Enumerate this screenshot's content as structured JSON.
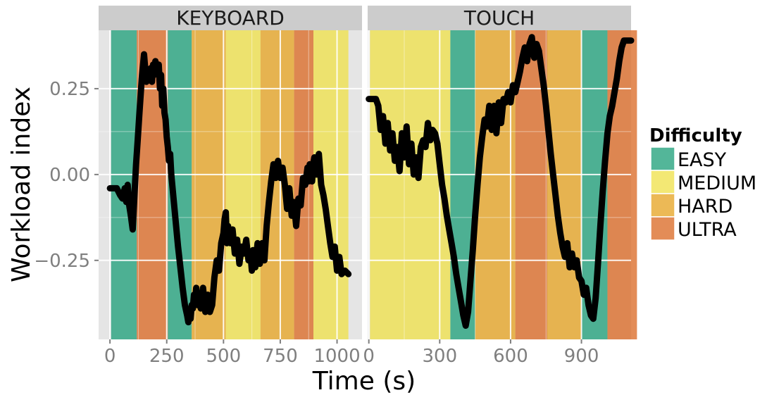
{
  "chart_data": {
    "type": "line",
    "xlabel": "Time (s)",
    "ylabel": "Workload index",
    "ylim": [
      -0.48,
      0.42
    ],
    "yticks": [
      -0.25,
      0.0,
      0.25
    ],
    "ytick_labels": [
      "−0.25",
      "0.00",
      "0.25"
    ],
    "grid": true,
    "legend": {
      "title": "Difficulty",
      "placement": "right",
      "entries": [
        {
          "label": "EASY",
          "color": "#1a9e77"
        },
        {
          "label": "MEDIUM",
          "color": "#efe045"
        },
        {
          "label": "HARD",
          "color": "#e6a21e"
        },
        {
          "label": "ULTRA",
          "color": "#d9661f"
        }
      ]
    },
    "line_color": "#000000",
    "panels": [
      {
        "title": "KEYBOARD",
        "xlim": [
          -50,
          1110
        ],
        "xticks": [
          0,
          250,
          500,
          750,
          1000
        ],
        "xtick_labels": [
          "0",
          "250",
          "500",
          "750",
          "1000"
        ],
        "bands": [
          {
            "start": 5,
            "end": 118,
            "level": "EASY"
          },
          {
            "start": 118,
            "end": 255,
            "level": "ULTRA"
          },
          {
            "start": 255,
            "end": 360,
            "level": "EASY"
          },
          {
            "start": 360,
            "end": 510,
            "level": "HARD"
          },
          {
            "start": 510,
            "end": 663,
            "level": "MEDIUM"
          },
          {
            "start": 663,
            "end": 811,
            "level": "HARD"
          },
          {
            "start": 811,
            "end": 896,
            "level": "ULTRA"
          },
          {
            "start": 896,
            "end": 1050,
            "level": "MEDIUM"
          }
        ],
        "series": [
          {
            "x": [
              0,
              30,
              45,
              55,
              65,
              72,
              78,
              85,
              92,
              100,
              108,
              115,
              122,
              130,
              140,
              150,
              160,
              168,
              175,
              180,
              185,
              190,
              195,
              200,
              210,
              215,
              220,
              225,
              230,
              235,
              240,
              245,
              250,
              255,
              260,
              265,
              270,
              280,
              290,
              300,
              310,
              320,
              330,
              340,
              345,
              350,
              355,
              360,
              365,
              370,
              375,
              380,
              385,
              390,
              400,
              410,
              420,
              430,
              440,
              450,
              460,
              470,
              480,
              490,
              500,
              505,
              510,
              515,
              520,
              525,
              530,
              540,
              550,
              560,
              570,
              580,
              590,
              600,
              610,
              620,
              625,
              630,
              640,
              650,
              660,
              670,
              680,
              690,
              700,
              710,
              720,
              730,
              740,
              750,
              760,
              770,
              780,
              790,
              800,
              810,
              820,
              830,
              840,
              850,
              860,
              870,
              875,
              880,
              885,
              890,
              895,
              900,
              910,
              920,
              930,
              940,
              950,
              960,
              970,
              980,
              990,
              1000,
              1010,
              1020,
              1035,
              1050
            ],
            "y": [
              -0.04,
              -0.04,
              -0.06,
              -0.07,
              -0.04,
              -0.08,
              -0.03,
              -0.09,
              -0.12,
              -0.16,
              -0.06,
              0.03,
              0.1,
              0.18,
              0.28,
              0.35,
              0.27,
              0.3,
              0.28,
              0.31,
              0.27,
              0.32,
              0.29,
              0.33,
              0.3,
              0.32,
              0.25,
              0.29,
              0.2,
              0.25,
              0.18,
              0.16,
              0.11,
              0.08,
              0.04,
              0.06,
              0.0,
              -0.07,
              -0.14,
              -0.21,
              -0.27,
              -0.33,
              -0.38,
              -0.41,
              -0.43,
              -0.4,
              -0.42,
              -0.38,
              -0.39,
              -0.35,
              -0.37,
              -0.33,
              -0.38,
              -0.35,
              -0.39,
              -0.33,
              -0.4,
              -0.35,
              -0.4,
              -0.38,
              -0.3,
              -0.25,
              -0.28,
              -0.2,
              -0.17,
              -0.13,
              -0.11,
              -0.2,
              -0.15,
              -0.18,
              -0.2,
              -0.16,
              -0.23,
              -0.19,
              -0.26,
              -0.21,
              -0.23,
              -0.19,
              -0.25,
              -0.24,
              -0.28,
              -0.22,
              -0.27,
              -0.2,
              -0.26,
              -0.2,
              -0.25,
              -0.15,
              -0.08,
              -0.02,
              0.03,
              -0.01,
              0.04,
              -0.01,
              0.02,
              -0.03,
              -0.1,
              -0.04,
              -0.12,
              -0.08,
              -0.15,
              -0.07,
              -0.09,
              -0.01,
              -0.03,
              0.02,
              -0.02,
              0.03,
              0.01,
              -0.02,
              0.03,
              0.05,
              0.0,
              0.06,
              -0.03,
              -0.06,
              -0.1,
              -0.15,
              -0.2,
              -0.24,
              -0.21,
              -0.28,
              -0.24,
              -0.29,
              -0.28,
              -0.29
            ]
          }
        ]
      },
      {
        "title": "TOUCH",
        "xlim": [
          -5,
          1110
        ],
        "xticks": [
          0,
          300,
          600,
          900
        ],
        "xtick_labels": [
          "0",
          "300",
          "600",
          "900"
        ],
        "bands": [
          {
            "start": 5,
            "end": 345,
            "level": "MEDIUM"
          },
          {
            "start": 345,
            "end": 450,
            "level": "EASY"
          },
          {
            "start": 450,
            "end": 620,
            "level": "HARD"
          },
          {
            "start": 620,
            "end": 755,
            "level": "ULTRA"
          },
          {
            "start": 755,
            "end": 900,
            "level": "HARD"
          },
          {
            "start": 900,
            "end": 1010,
            "level": "EASY"
          },
          {
            "start": 1010,
            "end": 1135,
            "level": "ULTRA"
          }
        ],
        "series": [
          {
            "x": [
              0,
              30,
              40,
              50,
              60,
              70,
              80,
              90,
              100,
              110,
              120,
              130,
              140,
              150,
              160,
              170,
              180,
              190,
              200,
              210,
              220,
              230,
              240,
              250,
              260,
              270,
              280,
              290,
              300,
              310,
              320,
              330,
              340,
              350,
              360,
              370,
              380,
              390,
              400,
              410,
              420,
              430,
              440,
              450,
              460,
              470,
              480,
              490,
              500,
              510,
              520,
              530,
              540,
              550,
              560,
              570,
              580,
              590,
              600,
              610,
              620,
              630,
              640,
              650,
              660,
              670,
              680,
              690,
              700,
              710,
              720,
              730,
              740,
              750,
              760,
              770,
              780,
              790,
              800,
              810,
              820,
              830,
              840,
              850,
              860,
              870,
              880,
              890,
              900,
              910,
              920,
              930,
              940,
              950,
              960,
              970,
              980,
              990,
              1000,
              1010,
              1020,
              1030,
              1040,
              1050,
              1060,
              1070,
              1080,
              1090,
              1100,
              1110
            ],
            "y": [
              0.22,
              0.22,
              0.2,
              0.13,
              0.17,
              0.09,
              0.15,
              0.07,
              0.12,
              0.04,
              0.08,
              0.01,
              0.12,
              0.05,
              0.14,
              0.03,
              0.09,
              0.0,
              0.05,
              -0.01,
              0.08,
              0.1,
              0.08,
              0.15,
              0.1,
              0.13,
              0.12,
              0.09,
              0.03,
              -0.03,
              -0.07,
              -0.12,
              -0.16,
              -0.2,
              -0.24,
              -0.29,
              -0.33,
              -0.37,
              -0.41,
              -0.44,
              -0.4,
              -0.31,
              -0.22,
              -0.12,
              -0.03,
              0.05,
              0.11,
              0.16,
              0.14,
              0.2,
              0.13,
              0.2,
              0.12,
              0.21,
              0.15,
              0.22,
              0.21,
              0.24,
              0.21,
              0.26,
              0.24,
              0.27,
              0.3,
              0.34,
              0.37,
              0.33,
              0.38,
              0.4,
              0.34,
              0.38,
              0.36,
              0.31,
              0.26,
              0.2,
              0.13,
              0.06,
              0.0,
              -0.06,
              -0.12,
              -0.17,
              -0.21,
              -0.24,
              -0.2,
              -0.27,
              -0.23,
              -0.27,
              -0.25,
              -0.3,
              -0.31,
              -0.35,
              -0.33,
              -0.38,
              -0.41,
              -0.42,
              -0.36,
              -0.26,
              -0.15,
              -0.05,
              0.04,
              0.12,
              0.17,
              0.2,
              0.24,
              0.28,
              0.33,
              0.37,
              0.39,
              0.39,
              0.39,
              0.39
            ]
          }
        ]
      }
    ]
  }
}
